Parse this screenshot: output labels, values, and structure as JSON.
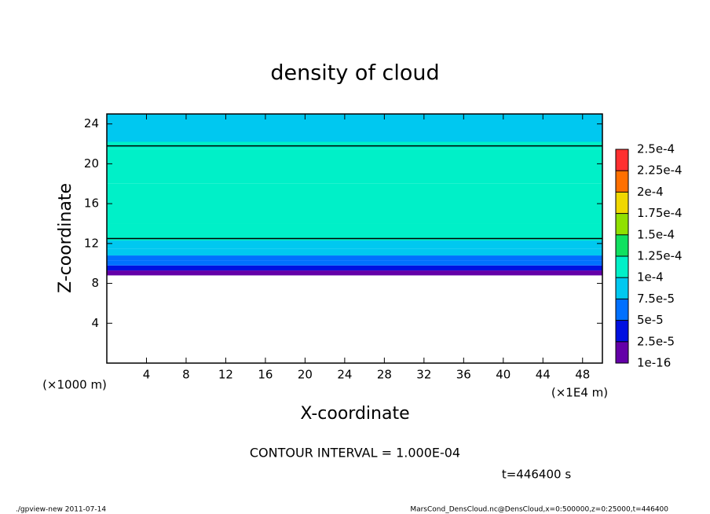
{
  "chart_data": {
    "type": "heatmap",
    "title": "density of cloud",
    "xlabel": "X-coordinate",
    "ylabel": "Z-coordinate",
    "x_unit": "(×1E4 m)",
    "y_unit": "(×1000 m)",
    "note": "CONTOUR INTERVAL = 1.000E-04",
    "time": "t=446400 s",
    "footer_left": "./gpview-new  2011-07-14",
    "footer_right": "MarsCond_DensCloud.nc@DensCloud,x=0:500000,z=0:25000,t=446400",
    "xlim": [
      0,
      50
    ],
    "xticks": [
      4,
      8,
      12,
      16,
      20,
      24,
      28,
      32,
      36,
      40,
      44,
      48
    ],
    "ylim": [
      0,
      25
    ],
    "yticks": [
      4,
      8,
      12,
      16,
      20,
      24
    ],
    "z_bins": [
      8.8,
      9.3,
      9.8,
      10.3,
      10.8,
      11.5,
      12.3,
      14,
      18,
      21.5,
      22.2,
      25
    ],
    "values": [
      1.5e-05,
      3.5e-05,
      6e-05,
      7e-05,
      8.5e-05,
      9.5e-05,
      0.00011,
      0.00012,
      0.00011,
      0.0001,
      8e-05
    ],
    "contour_z": [
      12.5,
      21.8
    ],
    "colorbar": {
      "levels": [
        {
          "value": 1e-16,
          "label": "1e-16"
        },
        {
          "value": 2.5e-05,
          "label": "2.5e-5"
        },
        {
          "value": 5e-05,
          "label": "5e-5"
        },
        {
          "value": 7.5e-05,
          "label": "7.5e-5"
        },
        {
          "value": 0.0001,
          "label": "1e-4"
        },
        {
          "value": 0.000125,
          "label": "1.25e-4"
        },
        {
          "value": 0.00015,
          "label": "1.5e-4"
        },
        {
          "value": 0.000175,
          "label": "1.75e-4"
        },
        {
          "value": 0.0002,
          "label": "2e-4"
        },
        {
          "value": 0.000225,
          "label": "2.25e-4"
        },
        {
          "value": 0.00025,
          "label": "2.5e-4"
        }
      ],
      "colors": [
        "#6400a8",
        "#0010e0",
        "#0070ff",
        "#00c8f0",
        "#00f0c8",
        "#10e060",
        "#90e000",
        "#f0d800",
        "#ff7000",
        "#ff3030"
      ]
    }
  }
}
